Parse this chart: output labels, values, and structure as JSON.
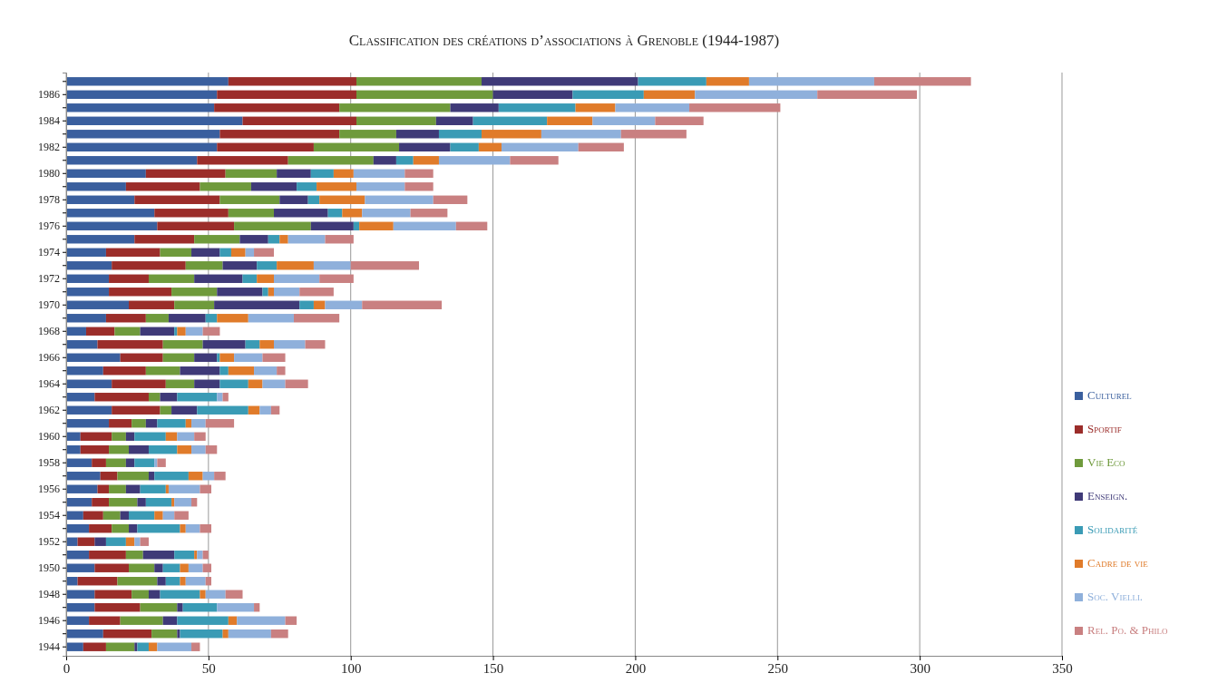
{
  "chart_data": {
    "type": "bar",
    "orientation": "horizontal",
    "stacked": true,
    "title": "Classification des créations d’associations à Grenoble (1944-1987)",
    "categories": [
      null,
      "1986",
      null,
      "1984",
      null,
      "1982",
      null,
      "1980",
      null,
      "1978",
      null,
      "1976",
      null,
      "1974",
      null,
      "1972",
      null,
      "1970",
      null,
      "1968",
      null,
      "1966",
      null,
      "1964",
      null,
      "1962",
      null,
      "1960",
      null,
      "1958",
      null,
      "1956",
      null,
      "1954",
      null,
      "1952",
      null,
      "1950",
      null,
      "1948",
      null,
      "1946",
      null,
      "1944"
    ],
    "series": [
      {
        "name": "Culturel",
        "color": "#3a5f9e",
        "values": [
          57,
          53,
          52,
          62,
          54,
          53,
          46,
          28,
          21,
          24,
          31,
          32,
          24,
          14,
          16,
          15,
          15,
          22,
          14,
          7,
          11,
          19,
          13,
          16,
          10,
          16,
          15,
          5,
          5,
          9,
          12,
          11,
          9,
          6,
          8,
          4,
          8,
          10,
          4,
          10,
          10,
          8,
          13,
          6
        ]
      },
      {
        "name": "Sportif",
        "color": "#9b2d2a",
        "values": [
          45,
          49,
          44,
          40,
          42,
          34,
          32,
          28,
          26,
          30,
          26,
          27,
          21,
          19,
          26,
          14,
          22,
          16,
          14,
          10,
          23,
          15,
          15,
          19,
          19,
          17,
          8,
          11,
          10,
          5,
          6,
          4,
          6,
          7,
          8,
          6,
          13,
          12,
          14,
          13,
          16,
          11,
          17,
          8
        ]
      },
      {
        "name": "Vie Eco",
        "color": "#6f9a3c",
        "values": [
          44,
          48,
          39,
          28,
          20,
          30,
          30,
          18,
          18,
          21,
          16,
          27,
          16,
          11,
          13,
          16,
          16,
          14,
          8,
          9,
          14,
          11,
          12,
          10,
          4,
          4,
          5,
          5,
          7,
          7,
          11,
          6,
          10,
          6,
          6,
          0,
          6,
          9,
          14,
          6,
          13,
          15,
          9,
          10
        ]
      },
      {
        "name": "Enseign.",
        "color": "#3f3a78",
        "values": [
          55,
          28,
          17,
          13,
          15,
          18,
          8,
          12,
          16,
          10,
          19,
          15,
          10,
          10,
          12,
          17,
          16,
          30,
          13,
          12,
          15,
          8,
          14,
          9,
          6,
          9,
          4,
          3,
          7,
          3,
          2,
          5,
          3,
          3,
          3,
          4,
          11,
          3,
          3,
          4,
          2,
          5,
          1,
          1
        ]
      },
      {
        "name": "Solidarité",
        "color": "#3a9bb5",
        "values": [
          24,
          25,
          27,
          26,
          15,
          10,
          6,
          8,
          7,
          4,
          5,
          2,
          4,
          4,
          7,
          5,
          2,
          5,
          4,
          1,
          5,
          1,
          3,
          10,
          14,
          18,
          10,
          11,
          10,
          7,
          12,
          9,
          9,
          9,
          15,
          7,
          7,
          6,
          5,
          14,
          12,
          18,
          15,
          4
        ]
      },
      {
        "name": "Cadre de vie",
        "color": "#e07b2a",
        "values": [
          15,
          18,
          14,
          16,
          21,
          8,
          9,
          7,
          14,
          16,
          7,
          12,
          3,
          5,
          13,
          6,
          2,
          4,
          11,
          3,
          5,
          5,
          9,
          5,
          0,
          4,
          2,
          4,
          5,
          0,
          5,
          1,
          1,
          3,
          2,
          3,
          1,
          3,
          2,
          2,
          0,
          3,
          2,
          3
        ]
      },
      {
        "name": "Soc. Vielli.",
        "color": "#8fb0db",
        "values": [
          44,
          43,
          26,
          22,
          28,
          27,
          25,
          18,
          17,
          24,
          17,
          22,
          13,
          3,
          13,
          16,
          9,
          13,
          16,
          6,
          11,
          10,
          8,
          8,
          2,
          4,
          5,
          6,
          5,
          1,
          4,
          11,
          6,
          4,
          5,
          2,
          2,
          5,
          7,
          7,
          13,
          17,
          15,
          12
        ]
      },
      {
        "name": "Rel. Po. & Philo",
        "color": "#c98081",
        "values": [
          34,
          35,
          32,
          17,
          23,
          16,
          17,
          10,
          10,
          12,
          13,
          11,
          10,
          7,
          24,
          12,
          12,
          28,
          16,
          6,
          7,
          8,
          3,
          8,
          2,
          3,
          10,
          4,
          4,
          3,
          4,
          4,
          2,
          5,
          4,
          3,
          2,
          3,
          2,
          6,
          2,
          4,
          6,
          3
        ]
      }
    ],
    "xlim": [
      0,
      350
    ],
    "xticks": [
      0,
      50,
      100,
      150,
      200,
      250,
      300,
      350
    ],
    "grid": "x",
    "legend": "right"
  }
}
